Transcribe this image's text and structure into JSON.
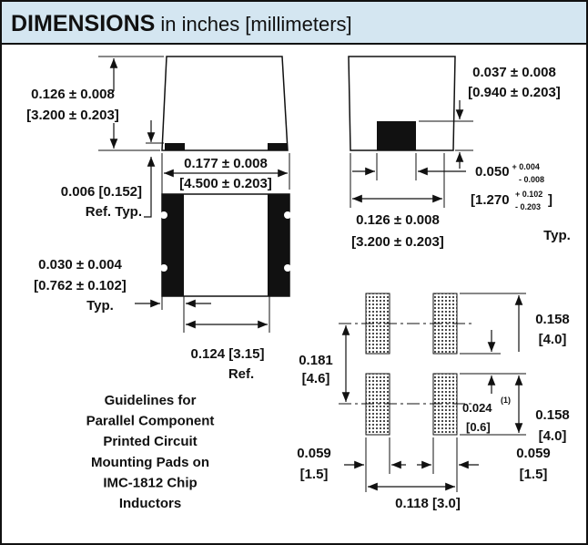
{
  "header": {
    "title": "DIMENSIONS",
    "subtitle": "in inches [millimeters]"
  },
  "dimensions": {
    "chip_height": {
      "inch": "0.126 ± 0.008",
      "mm": "[3.200 ± 0.203]"
    },
    "chip_length": {
      "inch": "0.177 ± 0.008",
      "mm": "[4.500 ± 0.203]"
    },
    "pad_offset": {
      "inch": "0.006 [0.152]",
      "note": "Ref. Typ."
    },
    "terminal_width": {
      "inch": "0.030 ± 0.004",
      "mm": "[0.762 ± 0.102]",
      "note": "Typ."
    },
    "inner_gap": {
      "inch": "0.124 [3.15]",
      "note": "Ref."
    },
    "terminal_thickness": {
      "inch": "0.037 ± 0.008",
      "mm": "[0.940 ± 0.203]"
    },
    "terminal_length": {
      "inch": "0.050",
      "inch_plus": "+ 0.004",
      "inch_minus": "- 0.008",
      "mm_open": "[1.270",
      "mm_plus": "+ 0.102",
      "mm_minus": "- 0.203",
      "mm_close": "]",
      "note": "Typ."
    },
    "chip_width": {
      "inch": "0.126 ± 0.008",
      "mm": "[3.200 ± 0.203]"
    },
    "pad_length_top": {
      "inch": "0.158",
      "mm": "[4.0]"
    },
    "pad_length_bottom": {
      "inch": "0.158",
      "mm": "[4.0]"
    },
    "pad_pitch": {
      "inch": "0.181",
      "mm": "[4.6]"
    },
    "pad_gap": {
      "inch": "0.024",
      "note": "(1)",
      "mm": "[0.6]"
    },
    "pad_width_left": {
      "inch": "0.059",
      "mm": "[1.5]"
    },
    "pad_width_right": {
      "inch": "0.059",
      "mm": "[1.5]"
    },
    "pad_spacing": {
      "inch": "0.118 [3.0]"
    }
  },
  "caption": [
    "Guidelines for",
    "Parallel Component",
    "Printed Circuit",
    "Mounting Pads on",
    "IMC-1812 Chip",
    "Inductors"
  ]
}
